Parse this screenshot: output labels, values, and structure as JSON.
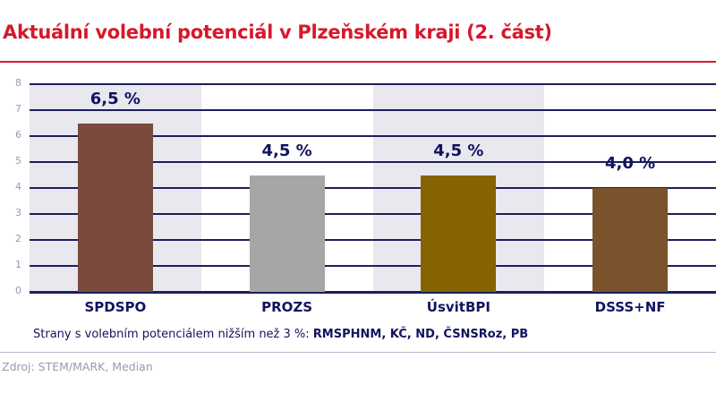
{
  "title": "Aktuální volební potenciál v Plzeňském kraji (2. část)",
  "chart_data": {
    "type": "bar",
    "title": "Aktuální volební potenciál v Plzeňském kraji (2. část)",
    "categories": [
      "SPDSPO",
      "PROZS",
      "ÚsvitBPI",
      "DSSS+NF"
    ],
    "values": [
      6.5,
      4.5,
      4.5,
      4.0
    ],
    "value_labels": [
      "6,5 %",
      "4,5 %",
      "4,5 %",
      "4,0 %"
    ],
    "bar_colors": [
      "#7b4a3e",
      "#a6a6a6",
      "#856300",
      "#7a522b"
    ],
    "xlabel": "",
    "ylabel": "",
    "ylim": [
      0,
      8
    ],
    "yticks": [
      "0",
      "1",
      "2",
      "3",
      "4",
      "5",
      "6",
      "7",
      "8"
    ],
    "grid": true,
    "legend": "none"
  },
  "note": {
    "prefix": "Strany s volebním potenciálem nižším než 3 %: ",
    "parties": "RMSPHNM, KČ, ND, ČSNSRoz, PB"
  },
  "source": "Zdroj: STEM/MARK, Median",
  "colors": {
    "title": "#d7182a",
    "text": "#12135e",
    "band": "#e8e8ee",
    "grid": "#1b1f5e"
  }
}
